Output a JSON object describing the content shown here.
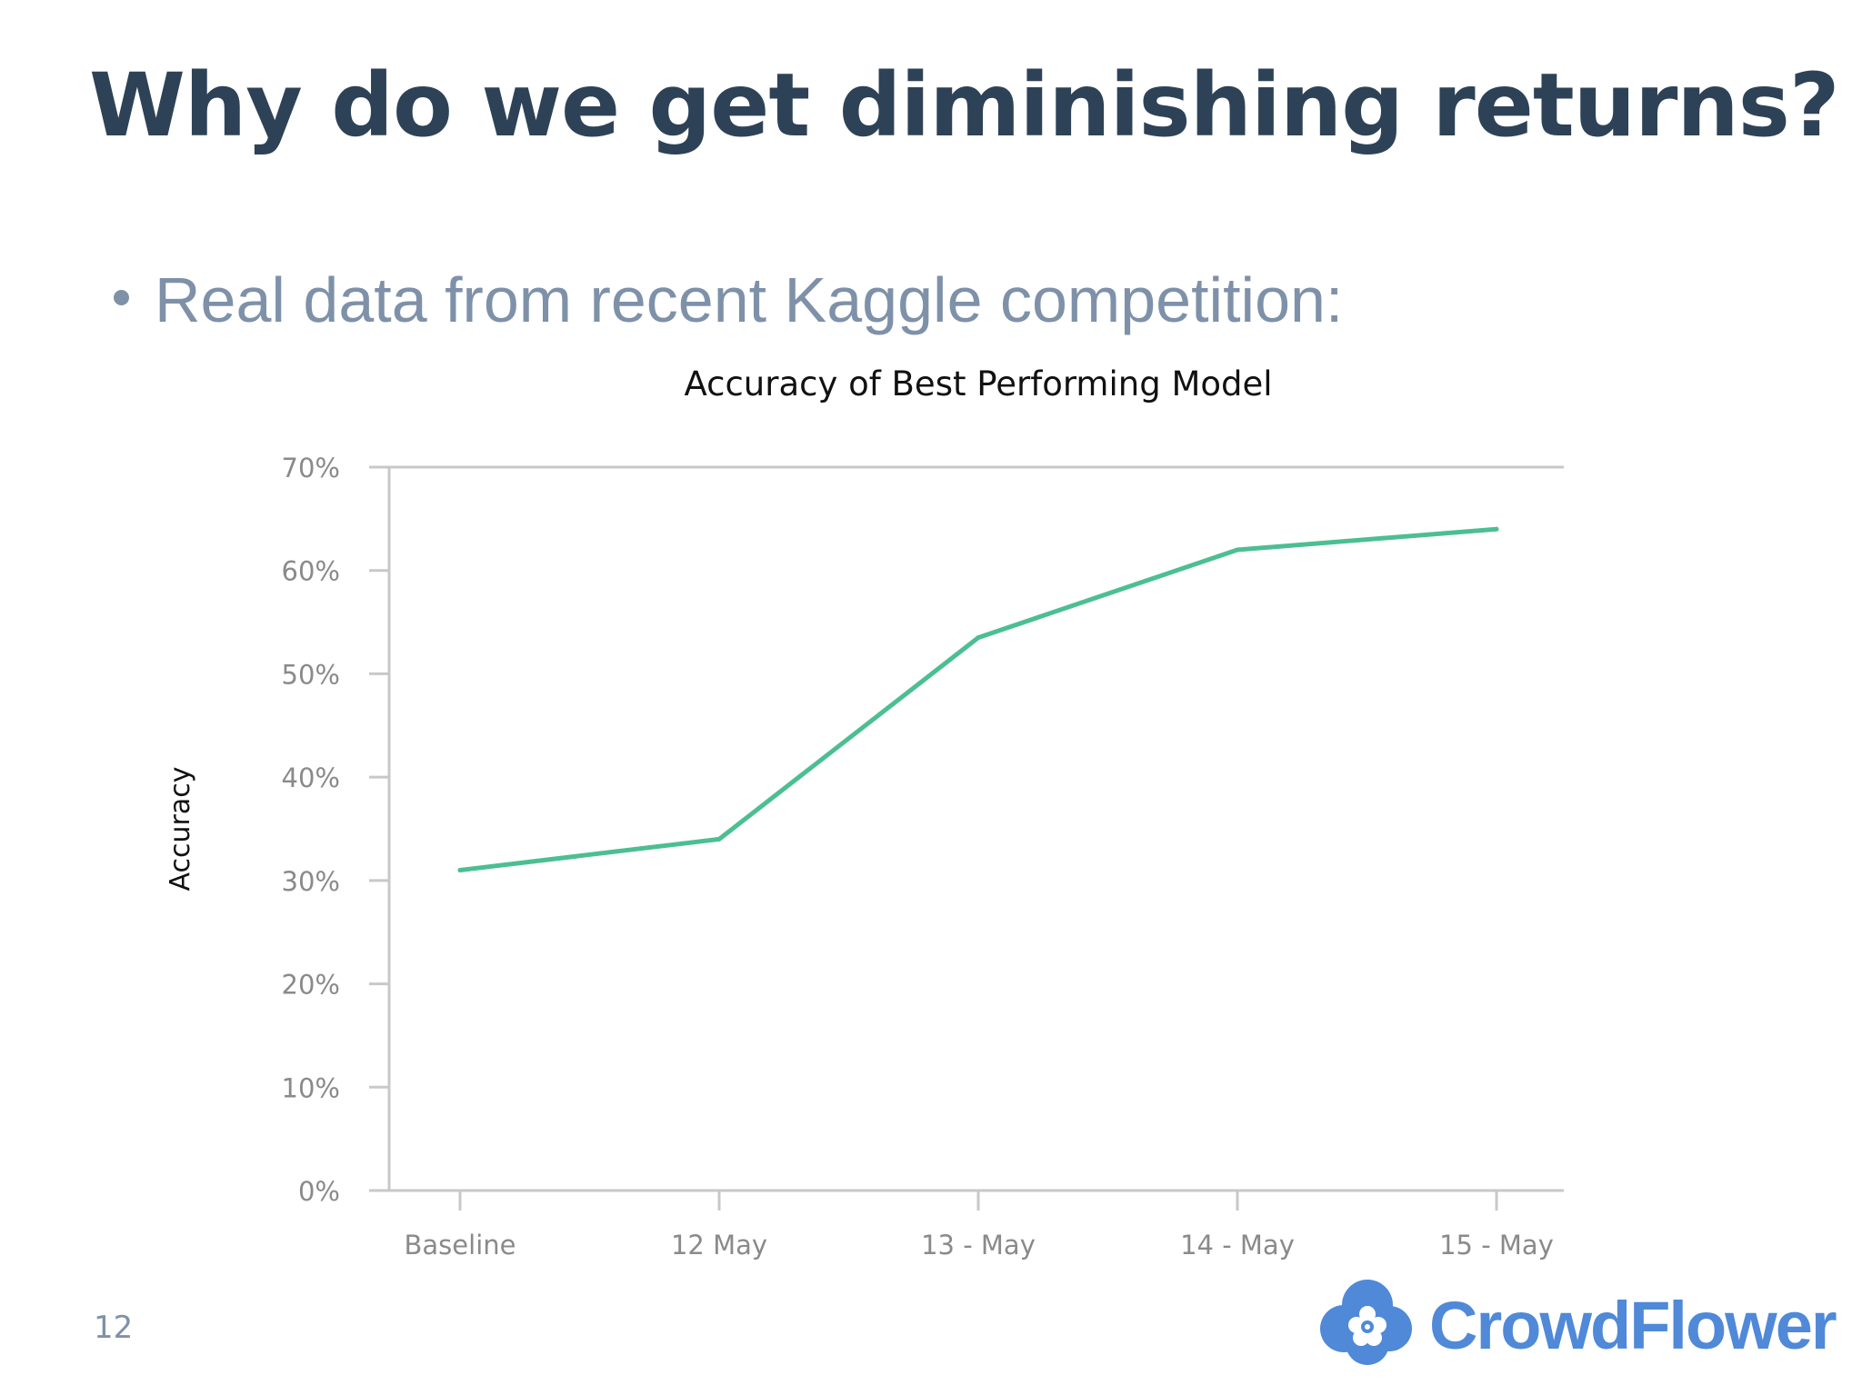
{
  "slide": {
    "title": "Why do we get diminishing returns?",
    "bullet": "Real data from recent Kaggle competition:",
    "page_number": "12",
    "brand": "CrowdFlower"
  },
  "colors": {
    "title": "#2e4257",
    "bullet": "#7e91a9",
    "series_line": "#4cbf92",
    "axis": "#c8c8c8",
    "tick_label": "#8a8a8a",
    "brand": "#4f89d8"
  },
  "chart_data": {
    "type": "line",
    "title": "Accuracy of Best Performing Model",
    "xlabel": "",
    "ylabel": "Accuracy",
    "categories": [
      "Baseline",
      "12 May",
      "13 - May",
      "14 - May",
      "15 - May"
    ],
    "series": [
      {
        "values": [
          31,
          34,
          53.5,
          62,
          64
        ]
      }
    ],
    "ylim": [
      0,
      70
    ],
    "yticks": [
      "0%",
      "10%",
      "20%",
      "30%",
      "40%",
      "50%",
      "60%",
      "70%"
    ],
    "ytick_values": [
      0,
      10,
      20,
      30,
      40,
      50,
      60,
      70
    ],
    "grid": false,
    "legend": "none"
  }
}
